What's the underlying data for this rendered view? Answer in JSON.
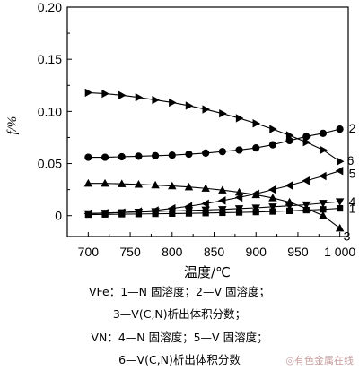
{
  "chart_data": {
    "type": "line",
    "xlabel": "温度/℃",
    "ylabel": "f/%",
    "xlim": [
      675,
      1010
    ],
    "ylim": [
      -0.02,
      0.2
    ],
    "x_ticks": [
      700,
      750,
      800,
      850,
      900,
      950,
      1000
    ],
    "x_tick_labels": [
      "700",
      "750",
      "800",
      "850",
      "900",
      "950",
      "1 000"
    ],
    "y_ticks": [
      0,
      0.05,
      0.1,
      0.15,
      0.2
    ],
    "y_tick_labels": [
      "0",
      "0.05",
      "0.10",
      "0.15",
      "0.20"
    ],
    "grid": false,
    "series": [
      {
        "name": "1",
        "marker": "square",
        "x": [
          700,
          720,
          740,
          760,
          780,
          800,
          820,
          840,
          860,
          880,
          900,
          920,
          940,
          960,
          980,
          1000
        ],
        "y": [
          0.001,
          0.0012,
          0.0014,
          0.0016,
          0.0018,
          0.002,
          0.0022,
          0.0025,
          0.0028,
          0.0031,
          0.0035,
          0.004,
          0.0046,
          0.0053,
          0.006,
          0.007
        ]
      },
      {
        "name": "2",
        "marker": "circle",
        "x": [
          700,
          720,
          740,
          760,
          780,
          800,
          820,
          840,
          860,
          880,
          900,
          920,
          940,
          960,
          980,
          1000
        ],
        "y": [
          0.056,
          0.056,
          0.0565,
          0.057,
          0.0575,
          0.058,
          0.059,
          0.06,
          0.0615,
          0.063,
          0.065,
          0.068,
          0.072,
          0.076,
          0.079,
          0.083
        ]
      },
      {
        "name": "3",
        "marker": "triangle-up",
        "x": [
          700,
          720,
          740,
          760,
          780,
          800,
          820,
          840,
          860,
          880,
          900,
          920,
          940,
          960,
          980,
          1000
        ],
        "y": [
          0.031,
          0.031,
          0.0305,
          0.03,
          0.0293,
          0.0285,
          0.0275,
          0.0262,
          0.0245,
          0.0225,
          0.02,
          0.017,
          0.013,
          0.007,
          0.0,
          -0.012
        ]
      },
      {
        "name": "4",
        "marker": "triangle-down",
        "x": [
          700,
          720,
          740,
          760,
          780,
          800,
          820,
          840,
          860,
          880,
          900,
          920,
          940,
          960,
          980,
          1000
        ],
        "y": [
          0.002,
          0.0025,
          0.003,
          0.0035,
          0.004,
          0.0045,
          0.005,
          0.0055,
          0.006,
          0.0068,
          0.0075,
          0.0085,
          0.0095,
          0.0105,
          0.012,
          0.0135
        ]
      },
      {
        "name": "5",
        "marker": "triangle-left",
        "x": [
          700,
          720,
          740,
          760,
          780,
          800,
          820,
          840,
          860,
          880,
          900,
          920,
          940,
          960,
          980,
          1000
        ],
        "y": [
          0.002,
          0.0025,
          0.003,
          0.004,
          0.005,
          0.007,
          0.009,
          0.0115,
          0.0145,
          0.0175,
          0.021,
          0.025,
          0.029,
          0.0335,
          0.038,
          0.043
        ]
      },
      {
        "name": "6",
        "marker": "triangle-right",
        "x": [
          700,
          720,
          740,
          760,
          780,
          800,
          820,
          840,
          860,
          880,
          900,
          920,
          940,
          960,
          980,
          1000
        ],
        "y": [
          0.118,
          0.117,
          0.1155,
          0.1135,
          0.111,
          0.1085,
          0.1055,
          0.102,
          0.098,
          0.0935,
          0.0885,
          0.083,
          0.077,
          0.0705,
          0.063,
          0.052
        ]
      }
    ]
  },
  "caption": {
    "line1": "VFe：1—N 固溶度；2—V 固溶度；",
    "line2": "3—V(C,N)析出体积分数；",
    "line3": "VN：4—N 固溶度；5—V 固溶度；",
    "line4": "6—V(C,N)析出体积分数"
  },
  "watermark": "有色金属在线"
}
